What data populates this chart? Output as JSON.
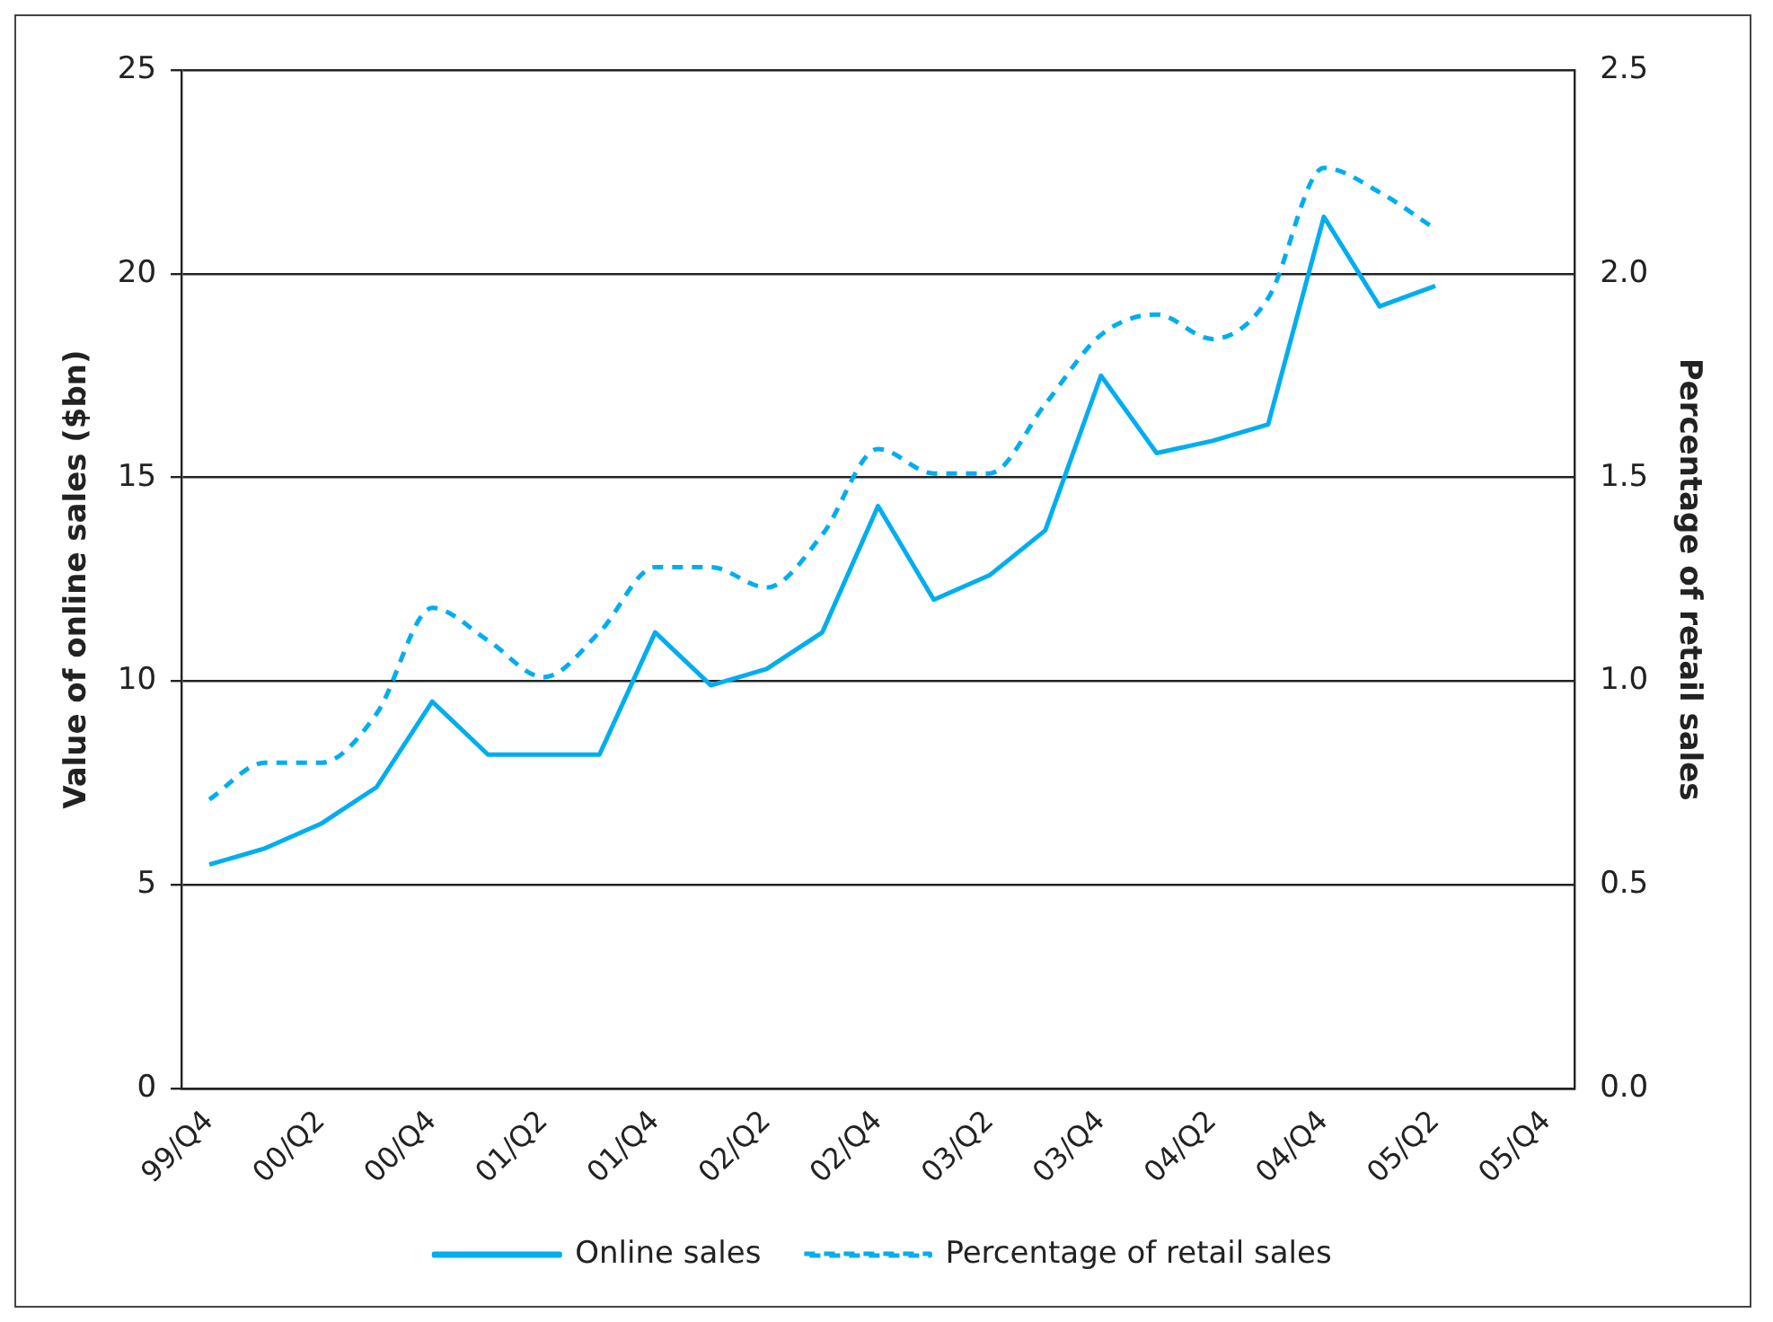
{
  "chart_data": {
    "type": "line",
    "categories": [
      "99/Q4",
      null,
      "00/Q2",
      null,
      "00/Q4",
      null,
      "01/Q2",
      null,
      "01/Q4",
      null,
      "02/Q2",
      null,
      "02/Q4",
      null,
      "03/Q2",
      null,
      "03/Q4",
      null,
      "04/Q2",
      null,
      "04/Q4",
      null,
      "05/Q2",
      null,
      "05/Q4"
    ],
    "series": [
      {
        "name": "Online sales",
        "color": "#00aeef",
        "line_style": "solid",
        "values": [
          5.5,
          5.9,
          6.5,
          7.4,
          9.5,
          8.2,
          8.2,
          8.2,
          11.2,
          9.9,
          10.3,
          11.2,
          14.3,
          12.0,
          12.6,
          13.7,
          17.5,
          15.6,
          15.9,
          16.3,
          21.4,
          19.2,
          19.7,
          null,
          null
        ]
      },
      {
        "name": "Percentage of retail sales",
        "color": "#00aeef",
        "line_style": "dashed",
        "axis": "y2",
        "values": [
          0.71,
          0.8,
          0.8,
          0.92,
          1.18,
          1.1,
          1.01,
          1.12,
          1.28,
          1.28,
          1.23,
          1.36,
          1.57,
          1.51,
          1.51,
          1.68,
          1.85,
          1.9,
          1.84,
          1.94,
          2.26,
          2.2,
          2.11,
          null,
          null
        ]
      }
    ],
    "ylabel": "Value of online sales ($bn)",
    "y2label": "Percentage of retail sales",
    "ylim": [
      0,
      25
    ],
    "yticks": [
      0,
      5,
      10,
      15,
      20,
      25
    ],
    "y2lim": [
      0,
      2.5
    ],
    "y2ticks": [
      {
        "value": 0,
        "label": "0.0"
      },
      {
        "value": 0.5,
        "label": "0.5"
      },
      {
        "value": 1,
        "label": "1.0"
      },
      {
        "value": 1.5,
        "label": "1.5"
      },
      {
        "value": 2,
        "label": "2.0"
      },
      {
        "value": 2.5,
        "label": "2.5"
      }
    ],
    "grid": "y",
    "legend": "bottom",
    "marker": "none"
  }
}
